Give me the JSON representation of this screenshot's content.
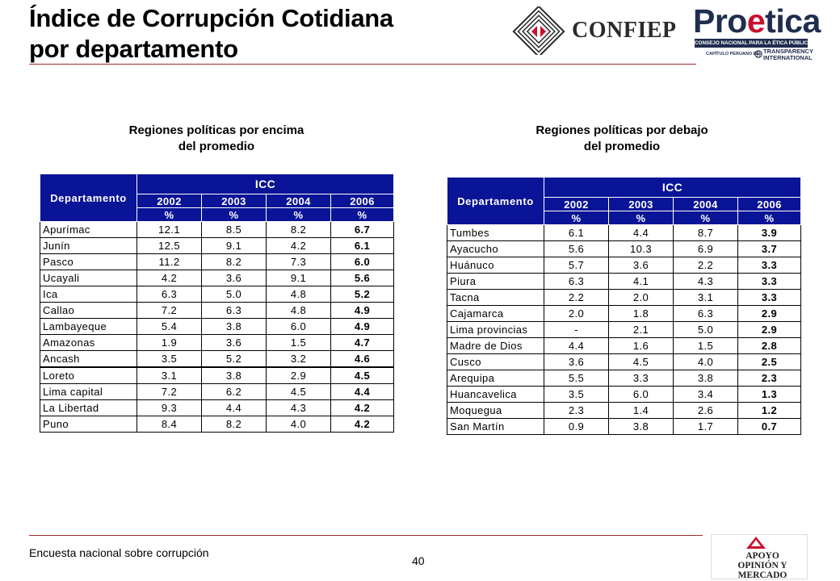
{
  "page": {
    "title_line1": "Índice de Corrupción Cotidiana",
    "title_line2": "por departamento",
    "footer_text": "Encuesta nacional sobre corrupción",
    "page_number": "40"
  },
  "logos": {
    "confiep": "CONFIEP",
    "proetica_pro": "Pro",
    "proetica_e": "e",
    "proetica_tica": "tica",
    "proetica_bar": "CONSEJO NACIONAL PARA LA ÉTICA PÚBLICA",
    "proetica_sub": "CAPÍTULO PERUANO DE:",
    "transparency_1": "TRANSPARENCY",
    "transparency_2": "INTERNATIONAL",
    "apoyo_1": "APOYO",
    "apoyo_2": "OPINIÓN Y MERCADO"
  },
  "colors": {
    "accent_rule": "#a52a2a",
    "header_blue": "#0a1496",
    "proetica_navy": "#1f2d4e",
    "proetica_red": "#c8102e"
  },
  "tables": {
    "left": {
      "heading": [
        "Regiones políticas por encima",
        "del promedio"
      ],
      "header_icc": "ICC",
      "header_dept": "Departamento",
      "years": [
        "2002",
        "2003",
        "2004",
        "2006"
      ],
      "pct": "%",
      "rows": [
        [
          "Apurímac",
          "12.1",
          "8.5",
          "8.2",
          "6.7"
        ],
        [
          "Junín",
          "12.5",
          "9.1",
          "4.2",
          "6.1"
        ],
        [
          "Pasco",
          "11.2",
          "8.2",
          "7.3",
          "6.0"
        ],
        [
          "Ucayali",
          "4.2",
          "3.6",
          "9.1",
          "5.6"
        ],
        [
          "Ica",
          "6.3",
          "5.0",
          "4.8",
          "5.2"
        ],
        [
          "Callao",
          "7.2",
          "6.3",
          "4.8",
          "4.9"
        ],
        [
          "Lambayeque",
          "5.4",
          "3.8",
          "6.0",
          "4.9"
        ],
        [
          "Amazonas",
          "1.9",
          "3.6",
          "1.5",
          "4.7"
        ],
        [
          "Ancash",
          "3.5",
          "5.2",
          "3.2",
          "4.6"
        ],
        [
          "Loreto",
          "3.1",
          "3.8",
          "2.9",
          "4.5"
        ],
        [
          "Lima capital",
          "7.2",
          "6.2",
          "4.5",
          "4.4"
        ],
        [
          "La Libertad",
          "9.3",
          "4.4",
          "4.3",
          "4.2"
        ],
        [
          "Puno",
          "8.4",
          "8.2",
          "4.0",
          "4.2"
        ]
      ]
    },
    "right": {
      "heading": [
        "Regiones políticas por debajo",
        "del promedio"
      ],
      "header_icc": "ICC",
      "header_dept": "Departamento",
      "years": [
        "2002",
        "2003",
        "2004",
        "2006"
      ],
      "pct": "%",
      "rows": [
        [
          "Tumbes",
          "6.1",
          "4.4",
          "8.7",
          "3.9"
        ],
        [
          "Ayacucho",
          "5.6",
          "10.3",
          "6.9",
          "3.7"
        ],
        [
          "Huánuco",
          "5.7",
          "3.6",
          "2.2",
          "3.3"
        ],
        [
          "Piura",
          "6.3",
          "4.1",
          "4.3",
          "3.3"
        ],
        [
          "Tacna",
          "2.2",
          "2.0",
          "3.1",
          "3.3"
        ],
        [
          "Cajamarca",
          "2.0",
          "1.8",
          "6.3",
          "2.9"
        ],
        [
          "Lima provincias",
          "-",
          "2.1",
          "5.0",
          "2.9"
        ],
        [
          "Madre de Dios",
          "4.4",
          "1.6",
          "1.5",
          "2.8"
        ],
        [
          "Cusco",
          "3.6",
          "4.5",
          "4.0",
          "2.5"
        ],
        [
          "Arequipa",
          "5.5",
          "3.3",
          "3.8",
          "2.3"
        ],
        [
          "Huancavelica",
          "3.5",
          "6.0",
          "3.4",
          "1.3"
        ],
        [
          "Moquegua",
          "2.3",
          "1.4",
          "2.6",
          "1.2"
        ],
        [
          "San Martín",
          "0.9",
          "3.8",
          "1.7",
          "0.7"
        ]
      ]
    }
  }
}
